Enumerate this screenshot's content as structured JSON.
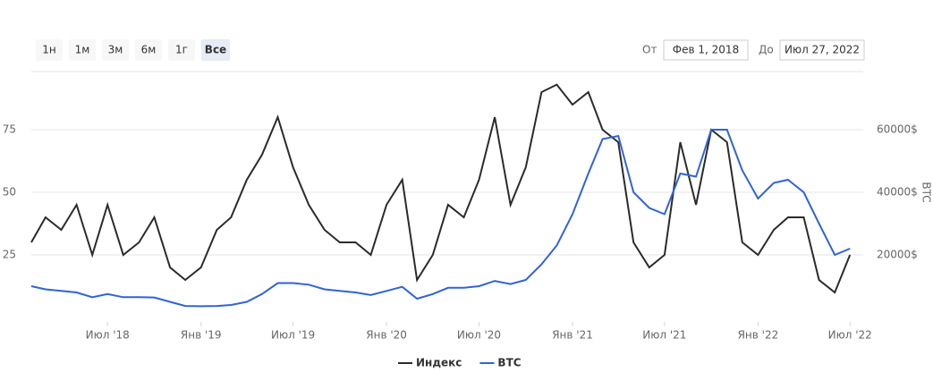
{
  "range_selector": {
    "buttons": [
      "1н",
      "1м",
      "3м",
      "6м",
      "1г",
      "Все"
    ],
    "active": 5,
    "from_label": "От",
    "from": "Фев 1, 2018",
    "to_label": "До",
    "to": "Июл 27, 2022"
  },
  "chart_data": {
    "type": "line",
    "x": [
      "2018-02",
      "2018-03",
      "2018-04",
      "2018-05",
      "2018-06",
      "2018-07",
      "2018-08",
      "2018-09",
      "2018-10",
      "2018-11",
      "2018-12",
      "2019-01",
      "2019-02",
      "2019-03",
      "2019-04",
      "2019-05",
      "2019-06",
      "2019-07",
      "2019-08",
      "2019-09",
      "2019-10",
      "2019-11",
      "2019-12",
      "2020-01",
      "2020-02",
      "2020-03",
      "2020-04",
      "2020-05",
      "2020-06",
      "2020-07",
      "2020-08",
      "2020-09",
      "2020-10",
      "2020-11",
      "2020-12",
      "2021-01",
      "2021-02",
      "2021-03",
      "2021-04",
      "2021-05",
      "2021-06",
      "2021-07",
      "2021-08",
      "2021-09",
      "2021-10",
      "2021-11",
      "2021-12",
      "2022-01",
      "2022-02",
      "2022-03",
      "2022-04",
      "2022-05",
      "2022-06",
      "2022-07"
    ],
    "series": [
      {
        "name": "Индекс",
        "color": "#2b2b2b",
        "values": [
          30,
          40,
          35,
          45,
          25,
          45,
          25,
          30,
          40,
          20,
          15,
          20,
          35,
          40,
          55,
          65,
          80,
          60,
          45,
          35,
          30,
          30,
          25,
          45,
          55,
          15,
          25,
          45,
          40,
          55,
          80,
          45,
          60,
          90,
          93,
          85,
          90,
          75,
          70,
          30,
          20,
          25,
          70,
          45,
          75,
          70,
          30,
          25,
          35,
          40,
          40,
          15,
          10,
          25
        ]
      },
      {
        "name": "BTC",
        "color": "#2f63d8",
        "axis": "y2",
        "values": [
          10000,
          9000,
          8500,
          8000,
          6500,
          7500,
          6500,
          6500,
          6400,
          5000,
          3700,
          3600,
          3700,
          4000,
          5000,
          7500,
          11000,
          11000,
          10500,
          9000,
          8500,
          8000,
          7200,
          8500,
          9800,
          6000,
          7500,
          9500,
          9500,
          10000,
          11700,
          10700,
          12000,
          17000,
          23000,
          33000,
          46000,
          57000,
          58000,
          40000,
          35000,
          33000,
          46000,
          45000,
          60000,
          60000,
          47000,
          38000,
          43000,
          44000,
          40000,
          30000,
          20000,
          22000
        ]
      }
    ],
    "xlim": [
      "2018-02-01",
      "2022-07-27"
    ],
    "xticks": [
      {
        "value": "2018-07",
        "label": "Июл '18"
      },
      {
        "value": "2019-01",
        "label": "Янв '19"
      },
      {
        "value": "2019-07",
        "label": "Июл '19"
      },
      {
        "value": "2020-01",
        "label": "Янв '20"
      },
      {
        "value": "2020-07",
        "label": "Июл '20"
      },
      {
        "value": "2021-01",
        "label": "Янв '21"
      },
      {
        "value": "2021-07",
        "label": "Июл '21"
      },
      {
        "value": "2022-01",
        "label": "Янв '22"
      },
      {
        "value": "2022-07",
        "label": "Июл '22"
      }
    ],
    "ylim": [
      0,
      100
    ],
    "yticks": [
      25,
      50,
      75
    ],
    "y2lim": [
      0,
      80000
    ],
    "y2ticks": [
      {
        "value": 20000,
        "label": "20000$"
      },
      {
        "value": 40000,
        "label": "40000$"
      },
      {
        "value": 60000,
        "label": "60000$"
      }
    ],
    "y2_label": "BTC",
    "grid": true
  }
}
